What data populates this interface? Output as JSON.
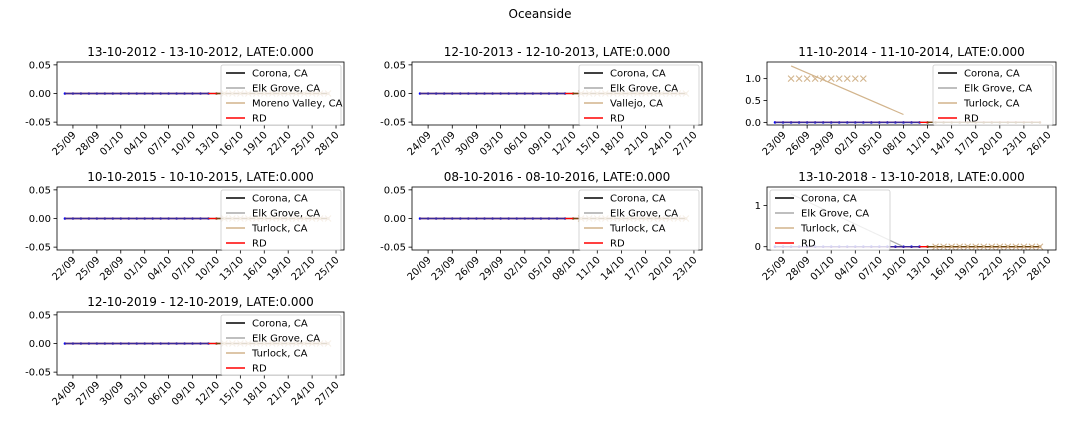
{
  "figure": {
    "suptitle": "Oceanside"
  },
  "colors": {
    "corona": "#000000",
    "elk_grove": "#aaaaaa",
    "third": "#d2b48c",
    "rd": "#ff0000",
    "treated_marker": "#0000ff",
    "control_marker": "#8b4513",
    "x_marker": "#d2b48c"
  },
  "chart_data": [
    {
      "type": "line",
      "title": "13-10-2012 - 13-10-2012, LATE:0.000",
      "xticks": [
        "25/09",
        "28/09",
        "01/10",
        "04/10",
        "07/10",
        "10/10",
        "13/10",
        "16/10",
        "19/10",
        "22/10",
        "25/10",
        "28/10"
      ],
      "xlim": [
        "23/09/2012",
        "29/10/2012"
      ],
      "yticks": [
        "0.05",
        "0.00",
        "-0.05"
      ],
      "ylim": [
        -0.055,
        0.055
      ],
      "treatment_date": "13/10/2012",
      "series": [
        {
          "name": "Corona, CA",
          "x": [
            "24/09/2012",
            "27/10/2012"
          ],
          "y": [
            0,
            0
          ]
        },
        {
          "name": "Elk Grove, CA",
          "x": [
            "24/09/2012",
            "27/10/2012"
          ],
          "y": [
            0,
            0
          ]
        },
        {
          "name": "Moreno Valley, CA",
          "x": [
            "24/09/2012",
            "27/10/2012"
          ],
          "y": [
            0,
            0
          ]
        },
        {
          "name": "RD",
          "x": [
            "24/09/2012",
            "27/10/2012"
          ],
          "y": [
            0,
            0
          ]
        }
      ],
      "x_markers": {
        "x": [
          "14/10/2012",
          "27/10/2012"
        ],
        "y": [
          0,
          0
        ]
      },
      "legend": [
        "Corona, CA",
        "Elk Grove, CA",
        "Moreno Valley, CA",
        "RD"
      ],
      "legend_placement": "top-right"
    },
    {
      "type": "line",
      "title": "12-10-2013 - 12-10-2013, LATE:0.000",
      "xticks": [
        "24/09",
        "27/09",
        "30/09",
        "03/10",
        "06/10",
        "09/10",
        "12/10",
        "15/10",
        "18/10",
        "21/10",
        "24/10",
        "27/10"
      ],
      "xlim": [
        "22/09/2013",
        "28/10/2013"
      ],
      "yticks": [
        "0.05",
        "0.00",
        "-0.05"
      ],
      "ylim": [
        -0.055,
        0.055
      ],
      "treatment_date": "12/10/2013",
      "series": [
        {
          "name": "Corona, CA",
          "x": [
            "23/09/2013",
            "26/10/2013"
          ],
          "y": [
            0,
            0
          ]
        },
        {
          "name": "Elk Grove, CA",
          "x": [
            "23/09/2013",
            "26/10/2013"
          ],
          "y": [
            0,
            0
          ]
        },
        {
          "name": "Vallejo, CA",
          "x": [
            "23/09/2013",
            "26/10/2013"
          ],
          "y": [
            0,
            0
          ]
        },
        {
          "name": "RD",
          "x": [
            "23/09/2013",
            "26/10/2013"
          ],
          "y": [
            0,
            0
          ]
        }
      ],
      "x_markers": {
        "x": [
          "13/10/2013",
          "26/10/2013"
        ],
        "y": [
          0,
          0
        ]
      },
      "legend": [
        "Corona, CA",
        "Elk Grove, CA",
        "Vallejo, CA",
        "RD"
      ],
      "legend_placement": "top-right"
    },
    {
      "type": "line",
      "title": "11-10-2014 - 11-10-2014, LATE:0.000",
      "xticks": [
        "23/09",
        "26/09",
        "29/09",
        "02/10",
        "05/10",
        "08/10",
        "11/10",
        "14/10",
        "17/10",
        "20/10",
        "23/10",
        "26/10"
      ],
      "xlim": [
        "21/09/2014",
        "27/10/2014"
      ],
      "yticks": [
        "1.0",
        "0.5",
        "0.0"
      ],
      "ylim": [
        -0.06,
        1.38
      ],
      "treatment_date": "11/10/2014",
      "series": [
        {
          "name": "Corona, CA",
          "x": [
            "22/09/2014",
            "25/10/2014"
          ],
          "y": [
            0,
            0
          ]
        },
        {
          "name": "Elk Grove, CA",
          "x": [
            "22/09/2014",
            "25/10/2014"
          ],
          "y": [
            0,
            0
          ]
        },
        {
          "name": "Turlock, CA",
          "x": [
            "24/09/2014",
            "08/10/2014"
          ],
          "y": [
            1.29,
            0.18
          ]
        },
        {
          "name": "RD",
          "x": [
            "22/09/2014",
            "25/10/2014"
          ],
          "y": [
            0,
            0
          ]
        }
      ],
      "x_markers": {
        "x": [
          "24/09/2014",
          "03/10/2014"
        ],
        "y": [
          1,
          1
        ]
      },
      "legend": [
        "Corona, CA",
        "Elk Grove, CA",
        "Turlock, CA",
        "RD"
      ],
      "legend_placement": "top-right"
    },
    {
      "type": "line",
      "title": "10-10-2015 - 10-10-2015, LATE:0.000",
      "xticks": [
        "22/09",
        "25/09",
        "28/09",
        "01/10",
        "04/10",
        "07/10",
        "10/10",
        "13/10",
        "16/10",
        "19/10",
        "22/10",
        "25/10"
      ],
      "xlim": [
        "20/09/2015",
        "26/10/2015"
      ],
      "yticks": [
        "0.05",
        "0.00",
        "-0.05"
      ],
      "ylim": [
        -0.055,
        0.055
      ],
      "treatment_date": "10/10/2015",
      "series": [
        {
          "name": "Corona, CA",
          "x": [
            "21/09/2015",
            "24/10/2015"
          ],
          "y": [
            0,
            0
          ]
        },
        {
          "name": "Elk Grove, CA",
          "x": [
            "21/09/2015",
            "24/10/2015"
          ],
          "y": [
            0,
            0
          ]
        },
        {
          "name": "Turlock, CA",
          "x": [
            "21/09/2015",
            "24/10/2015"
          ],
          "y": [
            0,
            0
          ]
        },
        {
          "name": "RD",
          "x": [
            "21/09/2015",
            "24/10/2015"
          ],
          "y": [
            0,
            0
          ]
        }
      ],
      "x_markers": {
        "x": [
          "11/10/2015",
          "24/10/2015"
        ],
        "y": [
          0,
          0
        ]
      },
      "legend": [
        "Corona, CA",
        "Elk Grove, CA",
        "Turlock, CA",
        "RD"
      ],
      "legend_placement": "top-right"
    },
    {
      "type": "line",
      "title": "08-10-2016 - 08-10-2016, LATE:0.000",
      "xticks": [
        "20/09",
        "23/09",
        "26/09",
        "29/09",
        "02/10",
        "05/10",
        "08/10",
        "11/10",
        "14/10",
        "17/10",
        "20/10",
        "23/10"
      ],
      "xlim": [
        "18/09/2016",
        "24/10/2016"
      ],
      "yticks": [
        "0.05",
        "0.00",
        "-0.05"
      ],
      "ylim": [
        -0.055,
        0.055
      ],
      "treatment_date": "08/10/2016",
      "series": [
        {
          "name": "Corona, CA",
          "x": [
            "19/09/2016",
            "22/10/2016"
          ],
          "y": [
            0,
            0
          ]
        },
        {
          "name": "Elk Grove, CA",
          "x": [
            "19/09/2016",
            "22/10/2016"
          ],
          "y": [
            0,
            0
          ]
        },
        {
          "name": "Turlock, CA",
          "x": [
            "19/09/2016",
            "22/10/2016"
          ],
          "y": [
            0,
            0
          ]
        },
        {
          "name": "RD",
          "x": [
            "19/09/2016",
            "22/10/2016"
          ],
          "y": [
            0,
            0
          ]
        }
      ],
      "x_markers": {
        "x": [
          "09/10/2016",
          "22/10/2016"
        ],
        "y": [
          0,
          0
        ]
      },
      "legend": [
        "Corona, CA",
        "Elk Grove, CA",
        "Turlock, CA",
        "RD"
      ],
      "legend_placement": "top-right"
    },
    {
      "type": "line",
      "title": "13-10-2018 - 13-10-2018, LATE:0.000",
      "xticks": [
        "25/09",
        "28/09",
        "01/10",
        "04/10",
        "07/10",
        "10/10",
        "13/10",
        "16/10",
        "19/10",
        "22/10",
        "25/10",
        "28/10"
      ],
      "xlim": [
        "23/09/2018",
        "29/10/2018"
      ],
      "yticks": [
        "1",
        "0"
      ],
      "ylim": [
        -0.08,
        1.45
      ],
      "treatment_date": "13/10/2018",
      "series": [
        {
          "name": "Corona, CA",
          "x": [
            "24/09/2018",
            "27/10/2018"
          ],
          "y": [
            0,
            0
          ]
        },
        {
          "name": "Elk Grove, CA",
          "x": [
            "26/09/2018",
            "10/10/2018"
          ],
          "y": [
            1.28,
            0
          ]
        },
        {
          "name": "Turlock, CA",
          "x": [
            "24/09/2018",
            "27/10/2018"
          ],
          "y": [
            0,
            0
          ]
        },
        {
          "name": "RD",
          "x": [
            "24/09/2018",
            "27/10/2018"
          ],
          "y": [
            0,
            0
          ]
        }
      ],
      "x_markers": {
        "x": [
          "14/10/2018",
          "27/10/2018"
        ],
        "y": [
          0,
          0
        ]
      },
      "legend": [
        "Corona, CA",
        "Elk Grove, CA",
        "Turlock, CA",
        "RD"
      ],
      "legend_placement": "top-left"
    },
    {
      "type": "line",
      "title": "12-10-2019 - 12-10-2019, LATE:0.000",
      "xticks": [
        "24/09",
        "27/09",
        "30/09",
        "03/10",
        "06/10",
        "09/10",
        "12/10",
        "15/10",
        "18/10",
        "21/10",
        "24/10",
        "27/10"
      ],
      "xlim": [
        "22/09/2019",
        "28/10/2019"
      ],
      "yticks": [
        "0.05",
        "0.00",
        "-0.05"
      ],
      "ylim": [
        -0.055,
        0.055
      ],
      "treatment_date": "12/10/2019",
      "series": [
        {
          "name": "Corona, CA",
          "x": [
            "23/09/2019",
            "26/10/2019"
          ],
          "y": [
            0,
            0
          ]
        },
        {
          "name": "Elk Grove, CA",
          "x": [
            "23/09/2019",
            "26/10/2019"
          ],
          "y": [
            0,
            0
          ]
        },
        {
          "name": "Turlock, CA",
          "x": [
            "23/09/2019",
            "26/10/2019"
          ],
          "y": [
            0,
            0
          ]
        },
        {
          "name": "RD",
          "x": [
            "23/09/2019",
            "26/10/2019"
          ],
          "y": [
            0,
            0
          ]
        }
      ],
      "x_markers": {
        "x": [
          "13/10/2019",
          "26/10/2019"
        ],
        "y": [
          0,
          0
        ]
      },
      "legend": [
        "Corona, CA",
        "Elk Grove, CA",
        "Turlock, CA",
        "RD"
      ],
      "legend_placement": "top-right"
    }
  ]
}
